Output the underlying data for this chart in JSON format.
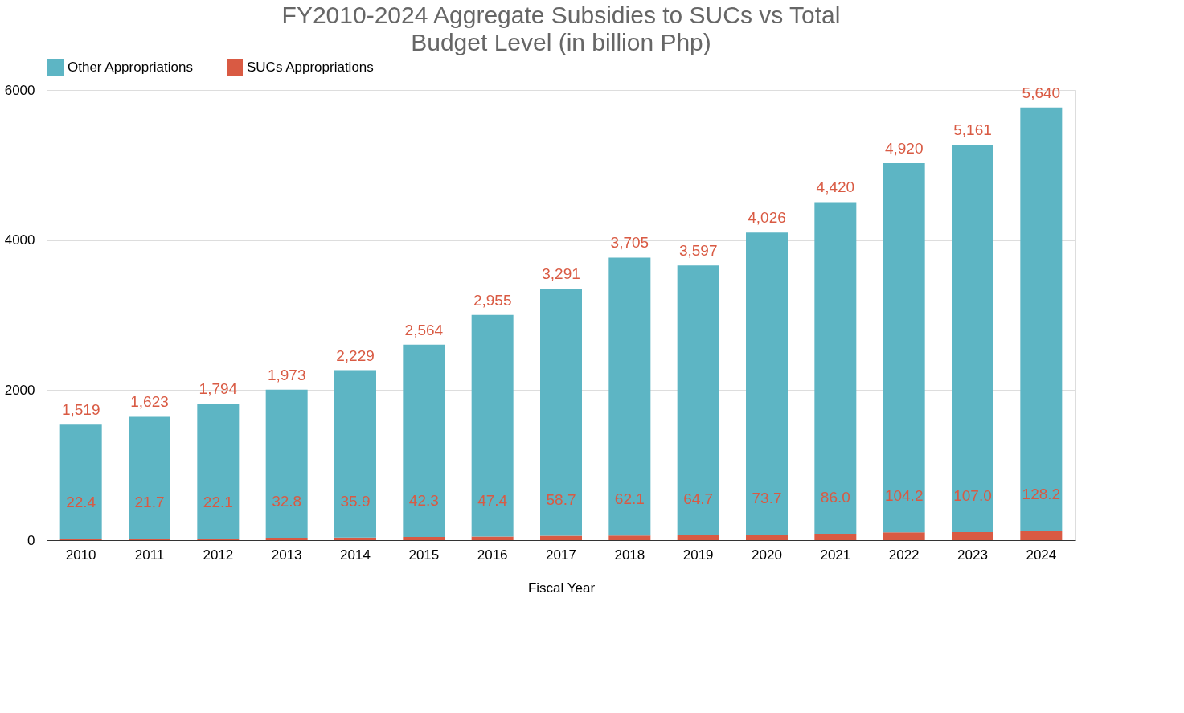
{
  "chart_data": {
    "type": "bar",
    "title": "FY2010-2024 Aggregate Subsidies to SUCs vs Total Budget Level (in billion Php)",
    "xlabel": "Fiscal Year",
    "categories": [
      "2010",
      "2011",
      "2012",
      "2013",
      "2014",
      "2015",
      "2016",
      "2017",
      "2018",
      "2019",
      "2020",
      "2021",
      "2022",
      "2023",
      "2024"
    ],
    "stacked": true,
    "series": [
      {
        "name": "SUCs Appropriations",
        "color": "#d95a43",
        "values": [
          22.4,
          21.7,
          22.1,
          32.8,
          35.9,
          42.3,
          47.4,
          58.7,
          62.1,
          64.7,
          73.7,
          86.0,
          104.2,
          107.0,
          128.2
        ],
        "value_labels": [
          "22.4",
          "21.7",
          "22.1",
          "32.8",
          "35.9",
          "42.3",
          "47.4",
          "58.7",
          "62.1",
          "64.7",
          "73.7",
          "86.0",
          "104.2",
          "107.0",
          "128.2"
        ]
      },
      {
        "name": "Other Appropriations",
        "color": "#5db5c4",
        "values": [
          1519,
          1623,
          1794,
          1973,
          2229,
          2564,
          2955,
          3291,
          3705,
          3597,
          4026,
          4420,
          4920,
          5161,
          5640
        ],
        "value_labels": [
          "1,519",
          "1,623",
          "1,794",
          "1,973",
          "2,229",
          "2,564",
          "2,955",
          "3,291",
          "3,705",
          "3,597",
          "4,026",
          "4,420",
          "4,920",
          "5,161",
          "5,640"
        ]
      }
    ],
    "ylim": [
      0,
      6000
    ],
    "yticks": [
      0,
      2000,
      4000,
      6000
    ],
    "grid": "y",
    "legend": "top"
  }
}
